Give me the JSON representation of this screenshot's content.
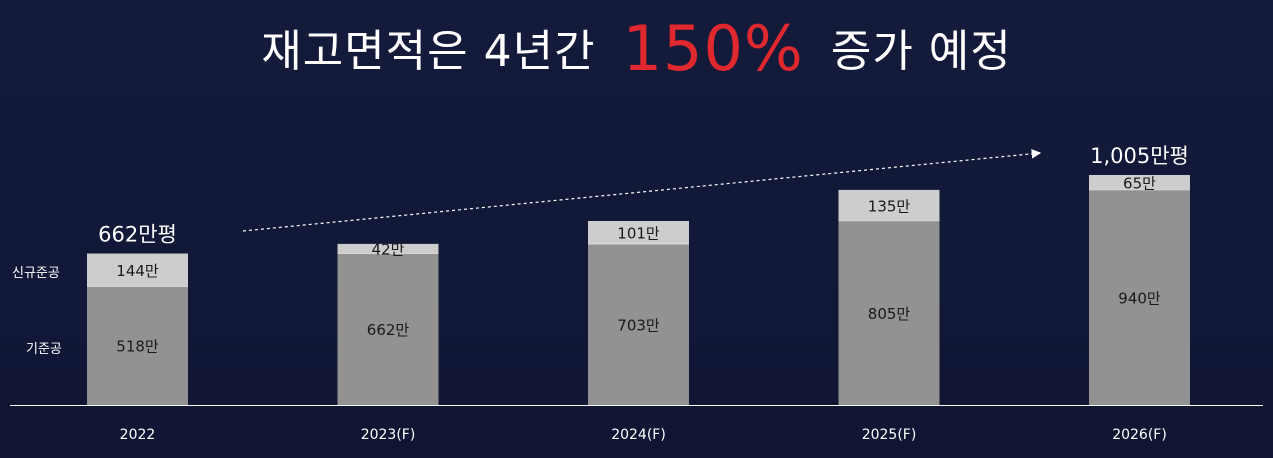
{
  "title": {
    "prefix": "재고면적은 4년간",
    "highlight": "150%",
    "suffix": "증가 예정",
    "highlight_color": "#e0282f"
  },
  "legend": {
    "new": "신규준공",
    "existing": "기준공"
  },
  "colors": {
    "existing": "#929292",
    "new": "#cdcdcd",
    "background": "#131939",
    "axis": "#ffffff"
  },
  "chart_data": {
    "type": "bar",
    "stacked": true,
    "categories": [
      "2022",
      "2023(F)",
      "2024(F)",
      "2025(F)",
      "2026(F)"
    ],
    "series": [
      {
        "name": "기준공",
        "values": [
          518,
          662,
          703,
          805,
          940
        ],
        "labels": [
          "518만",
          "662만",
          "703만",
          "805만",
          "940만"
        ]
      },
      {
        "name": "신규준공",
        "values": [
          144,
          42,
          101,
          135,
          65
        ],
        "labels": [
          "144만",
          "42만",
          "101만",
          "135만",
          "65만"
        ]
      }
    ],
    "annotations": [
      {
        "category": "2022",
        "text": "662만평"
      },
      {
        "category": "2026(F)",
        "text": "1,005만평"
      }
    ],
    "trend_arrow": true,
    "ylim": [
      0,
      1005
    ],
    "grid": false
  }
}
